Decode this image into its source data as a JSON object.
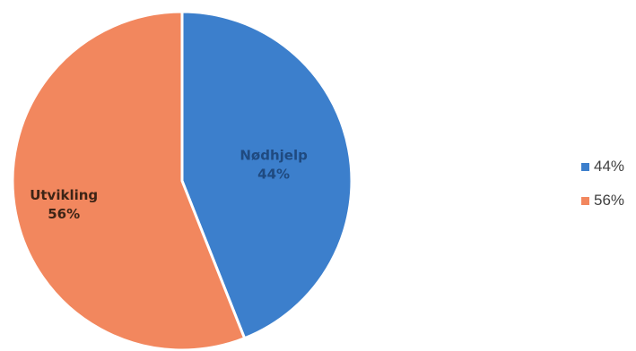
{
  "chart_data": {
    "type": "pie",
    "slices": [
      {
        "name": "Nødhjelp",
        "value": 44,
        "label": "44%",
        "color": "#3c7fcc",
        "label_color": "#1f4a80"
      },
      {
        "name": "Utvikling",
        "value": 56,
        "label": "56%",
        "color": "#f2875e",
        "label_color": "#3d2416"
      }
    ],
    "legend": {
      "position": "right",
      "entries": [
        "44%",
        "56%"
      ]
    },
    "start_angle": "12-o-clock",
    "direction": "clockwise"
  }
}
